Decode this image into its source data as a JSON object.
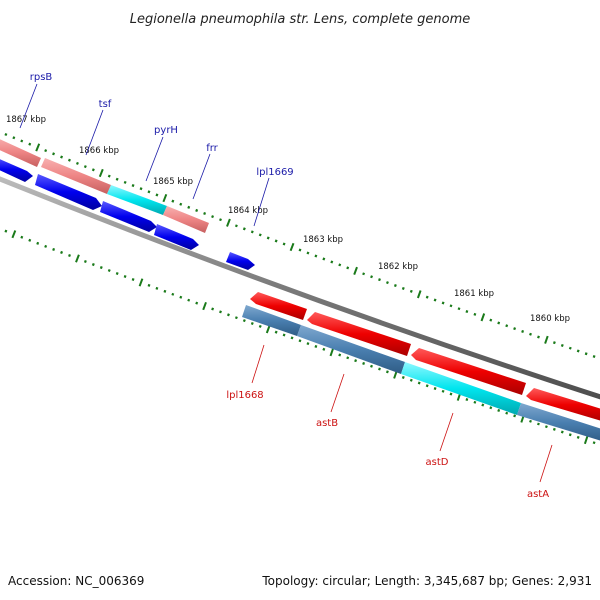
{
  "title": "Legionella pneumophila str. Lens, complete genome",
  "footer": {
    "accession": "Accession: NC_006369",
    "topology": "Topology: circular; Length: 3,345,687 bp; Genes: 2,931"
  },
  "kbp_labels": [
    "1867 kbp",
    "1866 kbp",
    "1865 kbp",
    "1864 kbp",
    "1863 kbp",
    "1862 kbp",
    "1861 kbp",
    "1860 kbp"
  ],
  "top_gene_labels": [
    "rpsB",
    "tsf",
    "pyrH",
    "frr",
    "lpl1669"
  ],
  "bottom_gene_labels": [
    "lpl1668",
    "astB",
    "astD",
    "astA"
  ],
  "colors": {
    "forward_gene": "#ff0000",
    "forward_cds": "#f08a8a",
    "reverse_gene": "#0000ee",
    "reverse_cds": "#4a7fb0",
    "highlight_cds": "#00e5ee",
    "backbone": "#808080",
    "tick": "#1a7a1a",
    "label_top": "#1a1aa8",
    "label_bottom": "#cc1111"
  }
}
